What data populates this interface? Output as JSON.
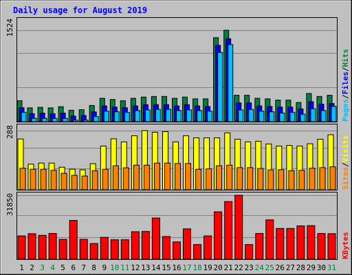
{
  "chart_data": [
    {
      "type": "bar",
      "panel": "hits-files-pages",
      "title": "Daily usage for August 2019",
      "y_max_label": "1524",
      "ylim": [
        0,
        1524
      ],
      "categories": [
        "1",
        "2",
        "3",
        "4",
        "5",
        "6",
        "7",
        "8",
        "9",
        "10",
        "11",
        "12",
        "13",
        "14",
        "15",
        "16",
        "17",
        "18",
        "19",
        "20",
        "21",
        "22",
        "23",
        "24",
        "25",
        "26",
        "27",
        "28",
        "29",
        "30",
        "31"
      ],
      "series": [
        {
          "name": "Hits",
          "color": "#008040",
          "values": [
            350,
            230,
            240,
            230,
            250,
            190,
            200,
            270,
            390,
            370,
            350,
            390,
            410,
            420,
            420,
            390,
            410,
            380,
            380,
            1400,
            1524,
            440,
            440,
            390,
            380,
            360,
            360,
            320,
            470,
            420,
            440
          ]
        },
        {
          "name": "Files",
          "color": "#0000FF",
          "values": [
            290,
            190,
            200,
            190,
            200,
            150,
            160,
            220,
            320,
            300,
            290,
            320,
            340,
            340,
            340,
            320,
            340,
            320,
            310,
            1330,
            1440,
            370,
            370,
            320,
            310,
            300,
            300,
            270,
            390,
            350,
            360
          ]
        },
        {
          "name": "Pages",
          "color": "#00C0FF",
          "values": [
            270,
            170,
            170,
            170,
            170,
            140,
            140,
            200,
            290,
            280,
            270,
            300,
            310,
            320,
            320,
            300,
            310,
            300,
            290,
            1270,
            1400,
            310,
            320,
            290,
            280,
            260,
            270,
            240,
            330,
            300,
            370
          ]
        }
      ],
      "legend_labels": [
        "Pages",
        "/",
        "Files",
        "/",
        "Hits"
      ],
      "legend_colors": [
        "#00C0FF",
        "#000000",
        "#0000FF",
        "#000000",
        "#008040"
      ]
    },
    {
      "type": "bar",
      "panel": "visits-sites",
      "y_max_label": "288",
      "ylim": [
        0,
        288
      ],
      "categories": [
        "1",
        "2",
        "3",
        "4",
        "5",
        "6",
        "7",
        "8",
        "9",
        "10",
        "11",
        "12",
        "13",
        "14",
        "15",
        "16",
        "17",
        "18",
        "19",
        "20",
        "21",
        "22",
        "23",
        "24",
        "25",
        "26",
        "27",
        "28",
        "29",
        "30",
        "31"
      ],
      "series": [
        {
          "name": "Visits",
          "color": "#FFFF00",
          "values": [
            247,
            125,
            130,
            130,
            110,
            100,
            97,
            127,
            213,
            248,
            233,
            263,
            288,
            280,
            283,
            233,
            263,
            253,
            253,
            253,
            277,
            246,
            233,
            236,
            223,
            213,
            216,
            213,
            224,
            246,
            268
          ]
        },
        {
          "name": "Sites",
          "color": "#FF8000",
          "values": [
            125,
            120,
            120,
            115,
            100,
            90,
            87,
            113,
            120,
            137,
            127,
            140,
            140,
            150,
            150,
            148,
            148,
            120,
            122,
            137,
            140,
            128,
            128,
            124,
            117,
            118,
            113,
            115,
            125,
            128,
            132
          ]
        }
      ],
      "legend_labels": [
        "Sites",
        "/",
        "Visits"
      ],
      "legend_colors": [
        "#FF8000",
        "#000000",
        "#FFFF00"
      ]
    },
    {
      "type": "bar",
      "panel": "kbytes",
      "y_max_label": "31850",
      "ylim": [
        0,
        31850
      ],
      "categories": [
        "1",
        "2",
        "3",
        "4",
        "5",
        "6",
        "7",
        "8",
        "9",
        "10",
        "11",
        "12",
        "13",
        "14",
        "15",
        "16",
        "17",
        "18",
        "19",
        "20",
        "21",
        "22",
        "23",
        "24",
        "25",
        "26",
        "27",
        "28",
        "29",
        "30",
        "31"
      ],
      "series": [
        {
          "name": "KBytes",
          "color": "#FF0000",
          "values": [
            11600,
            12700,
            11900,
            12800,
            9900,
            19300,
            9900,
            7800,
            10900,
            9700,
            9700,
            13700,
            13800,
            20500,
            11300,
            8600,
            15100,
            7300,
            11600,
            23600,
            28700,
            31850,
            7300,
            12800,
            19600,
            15300,
            15300,
            16600,
            16700,
            12800,
            12700
          ]
        }
      ],
      "legend_labels": [
        "KBytes"
      ],
      "legend_colors": [
        "#FF0000"
      ]
    }
  ],
  "day_label_colors": [
    "#000000",
    "#000000",
    "#008040",
    "#008040",
    "#000000",
    "#000000",
    "#000000",
    "#000000",
    "#000000",
    "#008040",
    "#008040",
    "#000000",
    "#000000",
    "#000000",
    "#000000",
    "#000000",
    "#008040",
    "#008040",
    "#000000",
    "#000000",
    "#000000",
    "#000000",
    "#000000",
    "#008040",
    "#008040",
    "#000000",
    "#000000",
    "#000000",
    "#000000",
    "#000000",
    "#008040"
  ]
}
